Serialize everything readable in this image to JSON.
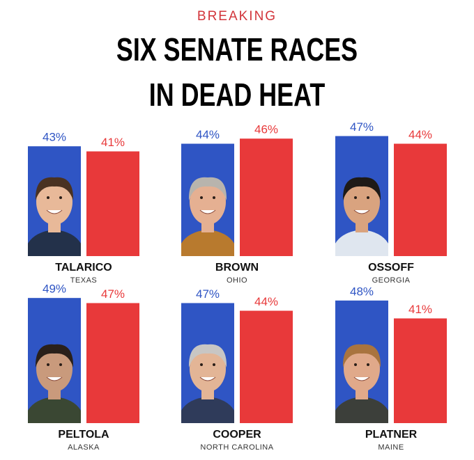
{
  "header": {
    "kicker": "BREAKING",
    "title": [
      "SIX SENATE RACES",
      "IN DEAD HEAT"
    ]
  },
  "chart_data": [
    {
      "type": "bar",
      "title": "TALARICO",
      "subtitle": "TEXAS",
      "values": [
        43,
        41
      ],
      "value_labels": [
        "43%",
        "41%"
      ],
      "colors": [
        "#2f55c4",
        "#e8393a"
      ]
    },
    {
      "type": "bar",
      "title": "BROWN",
      "subtitle": "OHIO",
      "values": [
        44,
        46
      ],
      "value_labels": [
        "44%",
        "46%"
      ],
      "colors": [
        "#2f55c4",
        "#e8393a"
      ]
    },
    {
      "type": "bar",
      "title": "OSSOFF",
      "subtitle": "GEORGIA",
      "values": [
        47,
        44
      ],
      "value_labels": [
        "47%",
        "44%"
      ],
      "colors": [
        "#2f55c4",
        "#e8393a"
      ]
    },
    {
      "type": "bar",
      "title": "PELTOLA",
      "subtitle": "ALASKA",
      "values": [
        49,
        47
      ],
      "value_labels": [
        "49%",
        "47%"
      ],
      "colors": [
        "#2f55c4",
        "#e8393a"
      ]
    },
    {
      "type": "bar",
      "title": "COOPER",
      "subtitle": "NORTH CAROLINA",
      "values": [
        47,
        44
      ],
      "value_labels": [
        "47%",
        "44%"
      ],
      "colors": [
        "#2f55c4",
        "#e8393a"
      ]
    },
    {
      "type": "bar",
      "title": "PLATNER",
      "subtitle": "MAINE",
      "values": [
        48,
        41
      ],
      "value_labels": [
        "48%",
        "41%"
      ],
      "colors": [
        "#2f55c4",
        "#e8393a"
      ]
    }
  ]
}
